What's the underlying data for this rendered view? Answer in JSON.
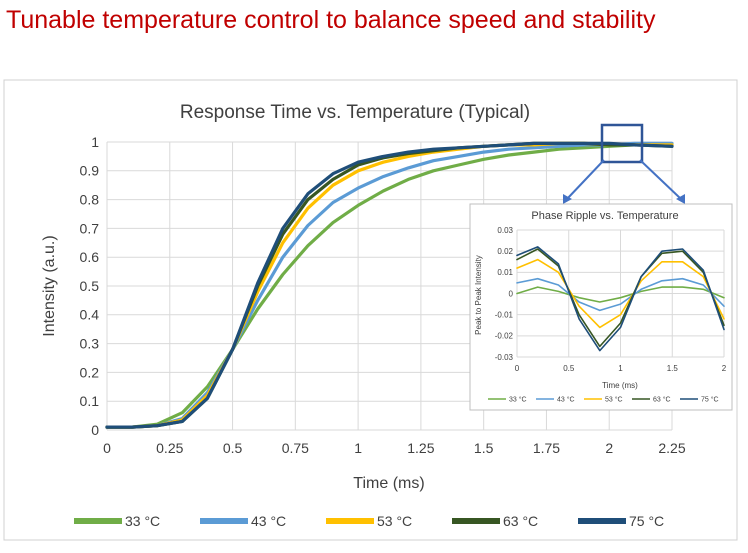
{
  "slide": {
    "title": "Tunable temperature control to balance speed and stability"
  },
  "colors": {
    "s33": "#70ad47",
    "s43": "#5b9bd5",
    "s53": "#ffc000",
    "s63": "#375623",
    "s75": "#1f4e79",
    "title_red": "#c00000"
  },
  "chart_data": [
    {
      "type": "line",
      "title": "Response Time vs. Temperature (Typical)",
      "xlabel": "Time (ms)",
      "ylabel": "Intensity (a.u.)",
      "xlim": [
        0,
        2.25
      ],
      "ylim": [
        0,
        1
      ],
      "xticks": [
        "0",
        "0.25",
        "0.5",
        "0.75",
        "1",
        "1.25",
        "1.5",
        "1.75",
        "2",
        "2.25"
      ],
      "yticks": [
        "0",
        "0.1",
        "0.2",
        "0.3",
        "0.4",
        "0.5",
        "0.6",
        "0.7",
        "0.8",
        "0.9",
        "1"
      ],
      "grid": true,
      "legend": "bottom",
      "series": [
        {
          "name": "33 °C",
          "color": "#70ad47",
          "x": [
            0,
            0.1,
            0.2,
            0.3,
            0.4,
            0.5,
            0.6,
            0.7,
            0.8,
            0.9,
            1.0,
            1.1,
            1.2,
            1.3,
            1.4,
            1.5,
            1.6,
            1.7,
            1.8,
            1.9,
            2.0,
            2.1,
            2.25
          ],
          "y": [
            0.01,
            0.01,
            0.02,
            0.06,
            0.15,
            0.28,
            0.42,
            0.54,
            0.64,
            0.72,
            0.78,
            0.83,
            0.87,
            0.9,
            0.92,
            0.94,
            0.955,
            0.965,
            0.975,
            0.98,
            0.985,
            0.99,
            0.99
          ]
        },
        {
          "name": "43 °C",
          "color": "#5b9bd5",
          "x": [
            0,
            0.1,
            0.2,
            0.3,
            0.4,
            0.5,
            0.6,
            0.7,
            0.8,
            0.9,
            1.0,
            1.1,
            1.2,
            1.3,
            1.4,
            1.5,
            1.6,
            1.7,
            1.8,
            1.9,
            2.0,
            2.1,
            2.25
          ],
          "y": [
            0.01,
            0.01,
            0.015,
            0.04,
            0.13,
            0.28,
            0.45,
            0.6,
            0.71,
            0.79,
            0.84,
            0.88,
            0.91,
            0.935,
            0.95,
            0.965,
            0.975,
            0.98,
            0.985,
            0.99,
            0.99,
            0.995,
            0.995
          ]
        },
        {
          "name": "53 °C",
          "color": "#ffc000",
          "x": [
            0,
            0.1,
            0.2,
            0.3,
            0.4,
            0.5,
            0.6,
            0.7,
            0.8,
            0.9,
            1.0,
            1.1,
            1.2,
            1.3,
            1.4,
            1.5,
            1.6,
            1.7,
            1.8,
            1.9,
            2.0,
            2.1,
            2.25
          ],
          "y": [
            0.01,
            0.01,
            0.015,
            0.035,
            0.12,
            0.28,
            0.48,
            0.65,
            0.77,
            0.85,
            0.9,
            0.93,
            0.95,
            0.965,
            0.975,
            0.985,
            0.99,
            0.99,
            0.995,
            0.995,
            0.99,
            0.99,
            0.99
          ]
        },
        {
          "name": "63 °C",
          "color": "#375623",
          "x": [
            0,
            0.1,
            0.2,
            0.3,
            0.4,
            0.5,
            0.6,
            0.7,
            0.8,
            0.9,
            1.0,
            1.1,
            1.2,
            1.3,
            1.4,
            1.5,
            1.6,
            1.7,
            1.8,
            1.9,
            2.0,
            2.1,
            2.25
          ],
          "y": [
            0.01,
            0.01,
            0.015,
            0.03,
            0.11,
            0.28,
            0.5,
            0.68,
            0.8,
            0.87,
            0.92,
            0.945,
            0.96,
            0.97,
            0.98,
            0.985,
            0.99,
            0.995,
            0.995,
            0.995,
            0.99,
            0.99,
            0.985
          ]
        },
        {
          "name": "75 °C",
          "color": "#1f4e79",
          "x": [
            0,
            0.1,
            0.2,
            0.3,
            0.4,
            0.5,
            0.6,
            0.7,
            0.8,
            0.9,
            1.0,
            1.1,
            1.2,
            1.3,
            1.4,
            1.5,
            1.6,
            1.7,
            1.8,
            1.9,
            2.0,
            2.1,
            2.25
          ],
          "y": [
            0.01,
            0.01,
            0.015,
            0.03,
            0.11,
            0.28,
            0.51,
            0.7,
            0.82,
            0.89,
            0.93,
            0.95,
            0.965,
            0.975,
            0.98,
            0.985,
            0.99,
            0.995,
            0.995,
            0.995,
            0.995,
            0.99,
            0.985
          ]
        }
      ]
    },
    {
      "type": "line",
      "title": "Phase Ripple vs. Temperature",
      "xlabel": "Time (ms)",
      "ylabel": "Peak to Peak Intensity",
      "xlim": [
        0,
        2
      ],
      "ylim": [
        -0.03,
        0.03
      ],
      "xticks": [
        "0",
        "0.5",
        "1",
        "1.5",
        "2"
      ],
      "yticks": [
        "-0.03",
        "-0.02",
        "-0.01",
        "0",
        "0.01",
        "0.02",
        "0.03"
      ],
      "grid": true,
      "legend": "bottom",
      "series": [
        {
          "name": "33 °C",
          "color": "#70ad47",
          "x": [
            0,
            0.2,
            0.4,
            0.6,
            0.8,
            1.0,
            1.2,
            1.4,
            1.6,
            1.8,
            2.0
          ],
          "y": [
            0.0,
            0.003,
            0.001,
            -0.002,
            -0.004,
            -0.002,
            0.001,
            0.003,
            0.003,
            0.002,
            -0.002
          ]
        },
        {
          "name": "43 °C",
          "color": "#5b9bd5",
          "x": [
            0,
            0.2,
            0.4,
            0.6,
            0.8,
            1.0,
            1.2,
            1.4,
            1.6,
            1.8,
            2.0
          ],
          "y": [
            0.005,
            0.007,
            0.004,
            -0.004,
            -0.008,
            -0.005,
            0.002,
            0.006,
            0.007,
            0.004,
            -0.006
          ]
        },
        {
          "name": "53 °C",
          "color": "#ffc000",
          "x": [
            0,
            0.2,
            0.4,
            0.6,
            0.8,
            1.0,
            1.2,
            1.4,
            1.6,
            1.8,
            2.0
          ],
          "y": [
            0.012,
            0.016,
            0.01,
            -0.006,
            -0.016,
            -0.01,
            0.006,
            0.015,
            0.015,
            0.008,
            -0.012
          ]
        },
        {
          "name": "63 °C",
          "color": "#375623",
          "x": [
            0,
            0.2,
            0.4,
            0.6,
            0.8,
            1.0,
            1.2,
            1.4,
            1.6,
            1.8,
            2.0
          ],
          "y": [
            0.016,
            0.021,
            0.013,
            -0.01,
            -0.025,
            -0.014,
            0.008,
            0.019,
            0.02,
            0.01,
            -0.015
          ]
        },
        {
          "name": "75 °C",
          "color": "#1f4e79",
          "x": [
            0,
            0.2,
            0.4,
            0.6,
            0.8,
            1.0,
            1.2,
            1.4,
            1.6,
            1.8,
            2.0
          ],
          "y": [
            0.018,
            0.022,
            0.014,
            -0.012,
            -0.027,
            -0.016,
            0.008,
            0.02,
            0.021,
            0.011,
            -0.017
          ]
        }
      ]
    }
  ]
}
